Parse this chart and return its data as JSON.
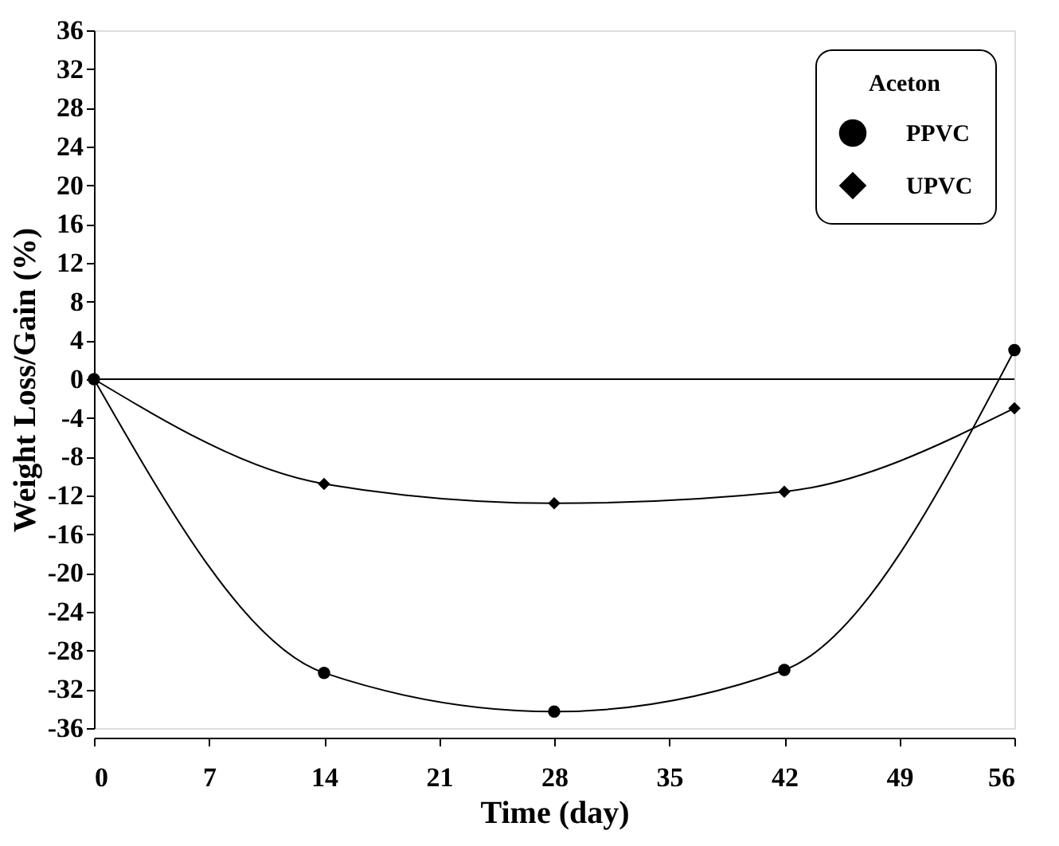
{
  "chart_data": {
    "type": "line",
    "xlabel": "Time (day)",
    "ylabel": "Weight Loss/Gain (%)",
    "legend_title": "Aceton",
    "x": [
      0,
      14,
      28,
      42,
      56
    ],
    "series": [
      {
        "name": "PPVC",
        "color": "#000000",
        "marker": "circle",
        "values": [
          0,
          -30.3,
          -34.3,
          -30.0,
          3.0
        ]
      },
      {
        "name": "UPVC",
        "color": "#000000",
        "marker": "diamond",
        "values": [
          0,
          -10.8,
          -12.8,
          -11.6,
          -3.0
        ]
      }
    ],
    "xlim": [
      0,
      56
    ],
    "xticks": [
      0,
      7,
      14,
      21,
      28,
      35,
      42,
      49,
      56
    ],
    "ylim": [
      -36,
      36
    ],
    "yticks": [
      -36,
      -32,
      -28,
      -24,
      -20,
      -16,
      -12,
      -8,
      -4,
      0,
      4,
      8,
      12,
      16,
      20,
      24,
      28,
      32,
      36
    ],
    "ref_lines": [
      {
        "axis": "y",
        "value": 0,
        "color": "#000000"
      }
    ],
    "grid": false,
    "legend": "top right",
    "line_style": "solid"
  }
}
